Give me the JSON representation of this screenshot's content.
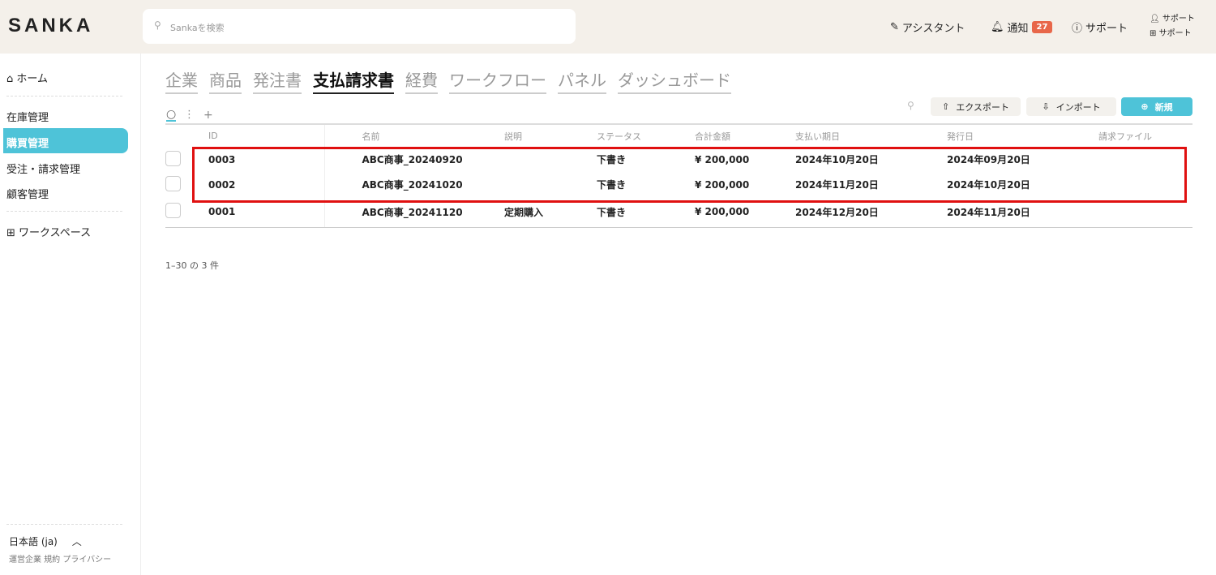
{
  "app": {
    "logo": "SANKA",
    "search_placeholder": "Sankaを検索"
  },
  "header": {
    "assistant": "アシスタント",
    "notifications": "通知",
    "notification_count": "27",
    "support": "サポート",
    "user_line1": "サポート",
    "user_line2": "サポート"
  },
  "sidebar": {
    "home": "ホーム",
    "items": [
      "在庫管理",
      "購買管理",
      "受注・請求管理",
      "顧客管理"
    ],
    "active": "購買管理",
    "workspace": "ワークスペース",
    "language": "日本語 (ja)",
    "footer": "運営企業 規約 プライバシー"
  },
  "tabs": [
    "企業",
    "商品",
    "発注書",
    "支払請求書",
    "経費",
    "ワークフロー",
    "パネル",
    "ダッシュボード"
  ],
  "active_tab": "支払請求書",
  "toolbar": {
    "export": "エクスポート",
    "import": "インポート",
    "new": "新規",
    "add": "+"
  },
  "table": {
    "headers": [
      "ID",
      "名前",
      "説明",
      "ステータス",
      "合計金額",
      "支払い期日",
      "発行日",
      "請求ファイル"
    ],
    "rows": [
      [
        "0003",
        "ABC商事_20240920",
        "",
        "下書き",
        "¥ 200,000",
        "2024年10月20日",
        "2024年09月20日",
        ""
      ],
      [
        "0002",
        "ABC商事_20241020",
        "",
        "下書き",
        "¥ 200,000",
        "2024年11月20日",
        "2024年10月20日",
        ""
      ],
      [
        "0001",
        "ABC商事_20241120",
        "定期購入",
        "下書き",
        "¥ 200,000",
        "2024年12月20日",
        "2024年11月20日",
        ""
      ]
    ]
  },
  "pagination": "1–30 の 3 件",
  "colors": {
    "accent": "#4ec3d8",
    "badge": "#e8674a",
    "highlight": "#e01010"
  }
}
